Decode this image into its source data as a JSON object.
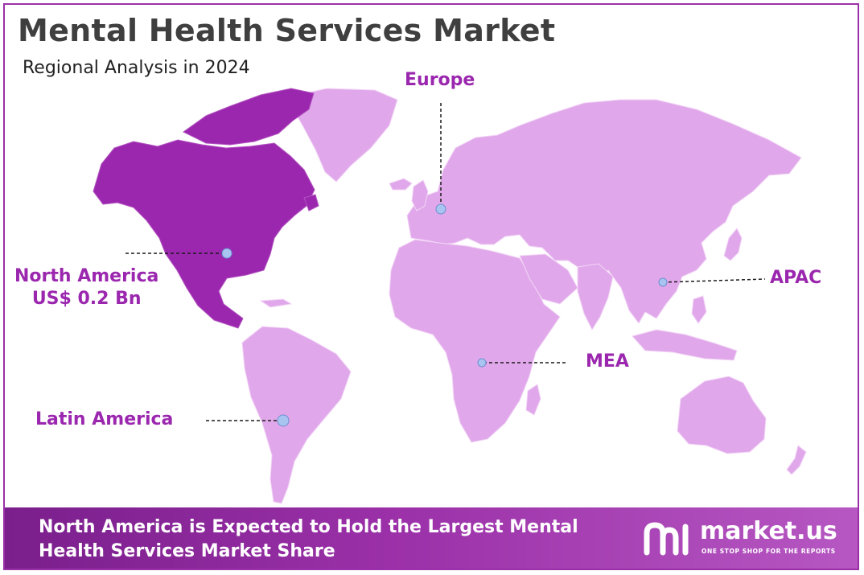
{
  "title": "Mental Health Services Market",
  "subtitle": "Regional Analysis in 2024",
  "colors": {
    "highlight_region": "#9b27af",
    "other_regions": "#e0a8ea",
    "label": "#9b27af",
    "marker": "#a9c4f0",
    "footer": "#9b30a8"
  },
  "regions": [
    {
      "id": "north-america",
      "name": "North America",
      "value": "US$ 0.2 Bn",
      "highlighted": true
    },
    {
      "id": "europe",
      "name": "Europe",
      "highlighted": false
    },
    {
      "id": "apac",
      "name": "APAC",
      "highlighted": false
    },
    {
      "id": "mea",
      "name": "MEA",
      "highlighted": false
    },
    {
      "id": "latin-america",
      "name": "Latin America",
      "highlighted": false
    }
  ],
  "footer": {
    "headline": "North America is Expected to Hold the Largest Mental Health Services Market Share"
  },
  "logo": {
    "name": "market.us",
    "tagline": "ONE STOP SHOP FOR THE REPORTS"
  }
}
